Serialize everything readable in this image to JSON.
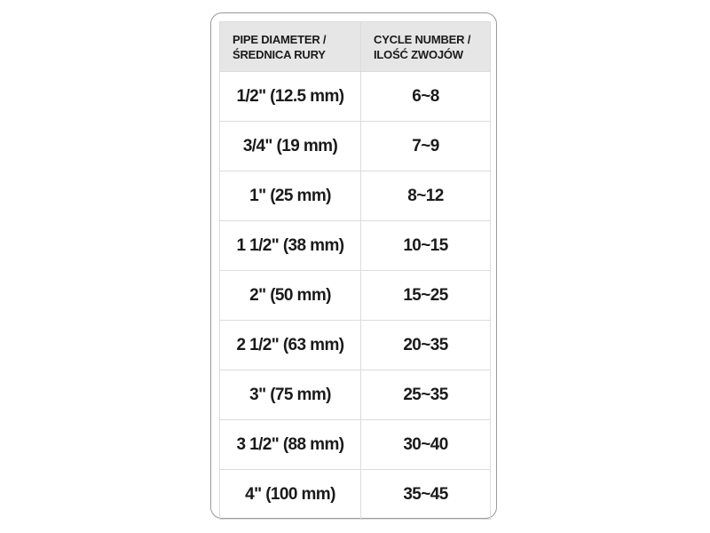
{
  "table": {
    "headers": [
      {
        "line1": "PIPE DIAMETER /",
        "line2": "ŚREDNICA RURY"
      },
      {
        "line1": "CYCLE NUMBER /",
        "line2": "ILOŚĆ ZWOJÓW"
      }
    ],
    "rows": [
      {
        "diameter": "1/2\" (12.5 mm)",
        "cycles": "6~8"
      },
      {
        "diameter": "3/4\" (19 mm)",
        "cycles": "7~9"
      },
      {
        "diameter": "1\" (25 mm)",
        "cycles": "8~12"
      },
      {
        "diameter": "1 1/2\" (38 mm)",
        "cycles": "10~15"
      },
      {
        "diameter": "2\" (50 mm)",
        "cycles": "15~25"
      },
      {
        "diameter": "2 1/2\" (63 mm)",
        "cycles": "20~35"
      },
      {
        "diameter": "3\" (75 mm)",
        "cycles": "25~35"
      },
      {
        "diameter": "3 1/2\" (88 mm)",
        "cycles": "30~40"
      },
      {
        "diameter": "4\" (100 mm)",
        "cycles": "35~45"
      }
    ]
  },
  "colors": {
    "header_bg": "#e6e6e6",
    "border": "#dcdcdc",
    "frame": "#9a9a9a"
  }
}
